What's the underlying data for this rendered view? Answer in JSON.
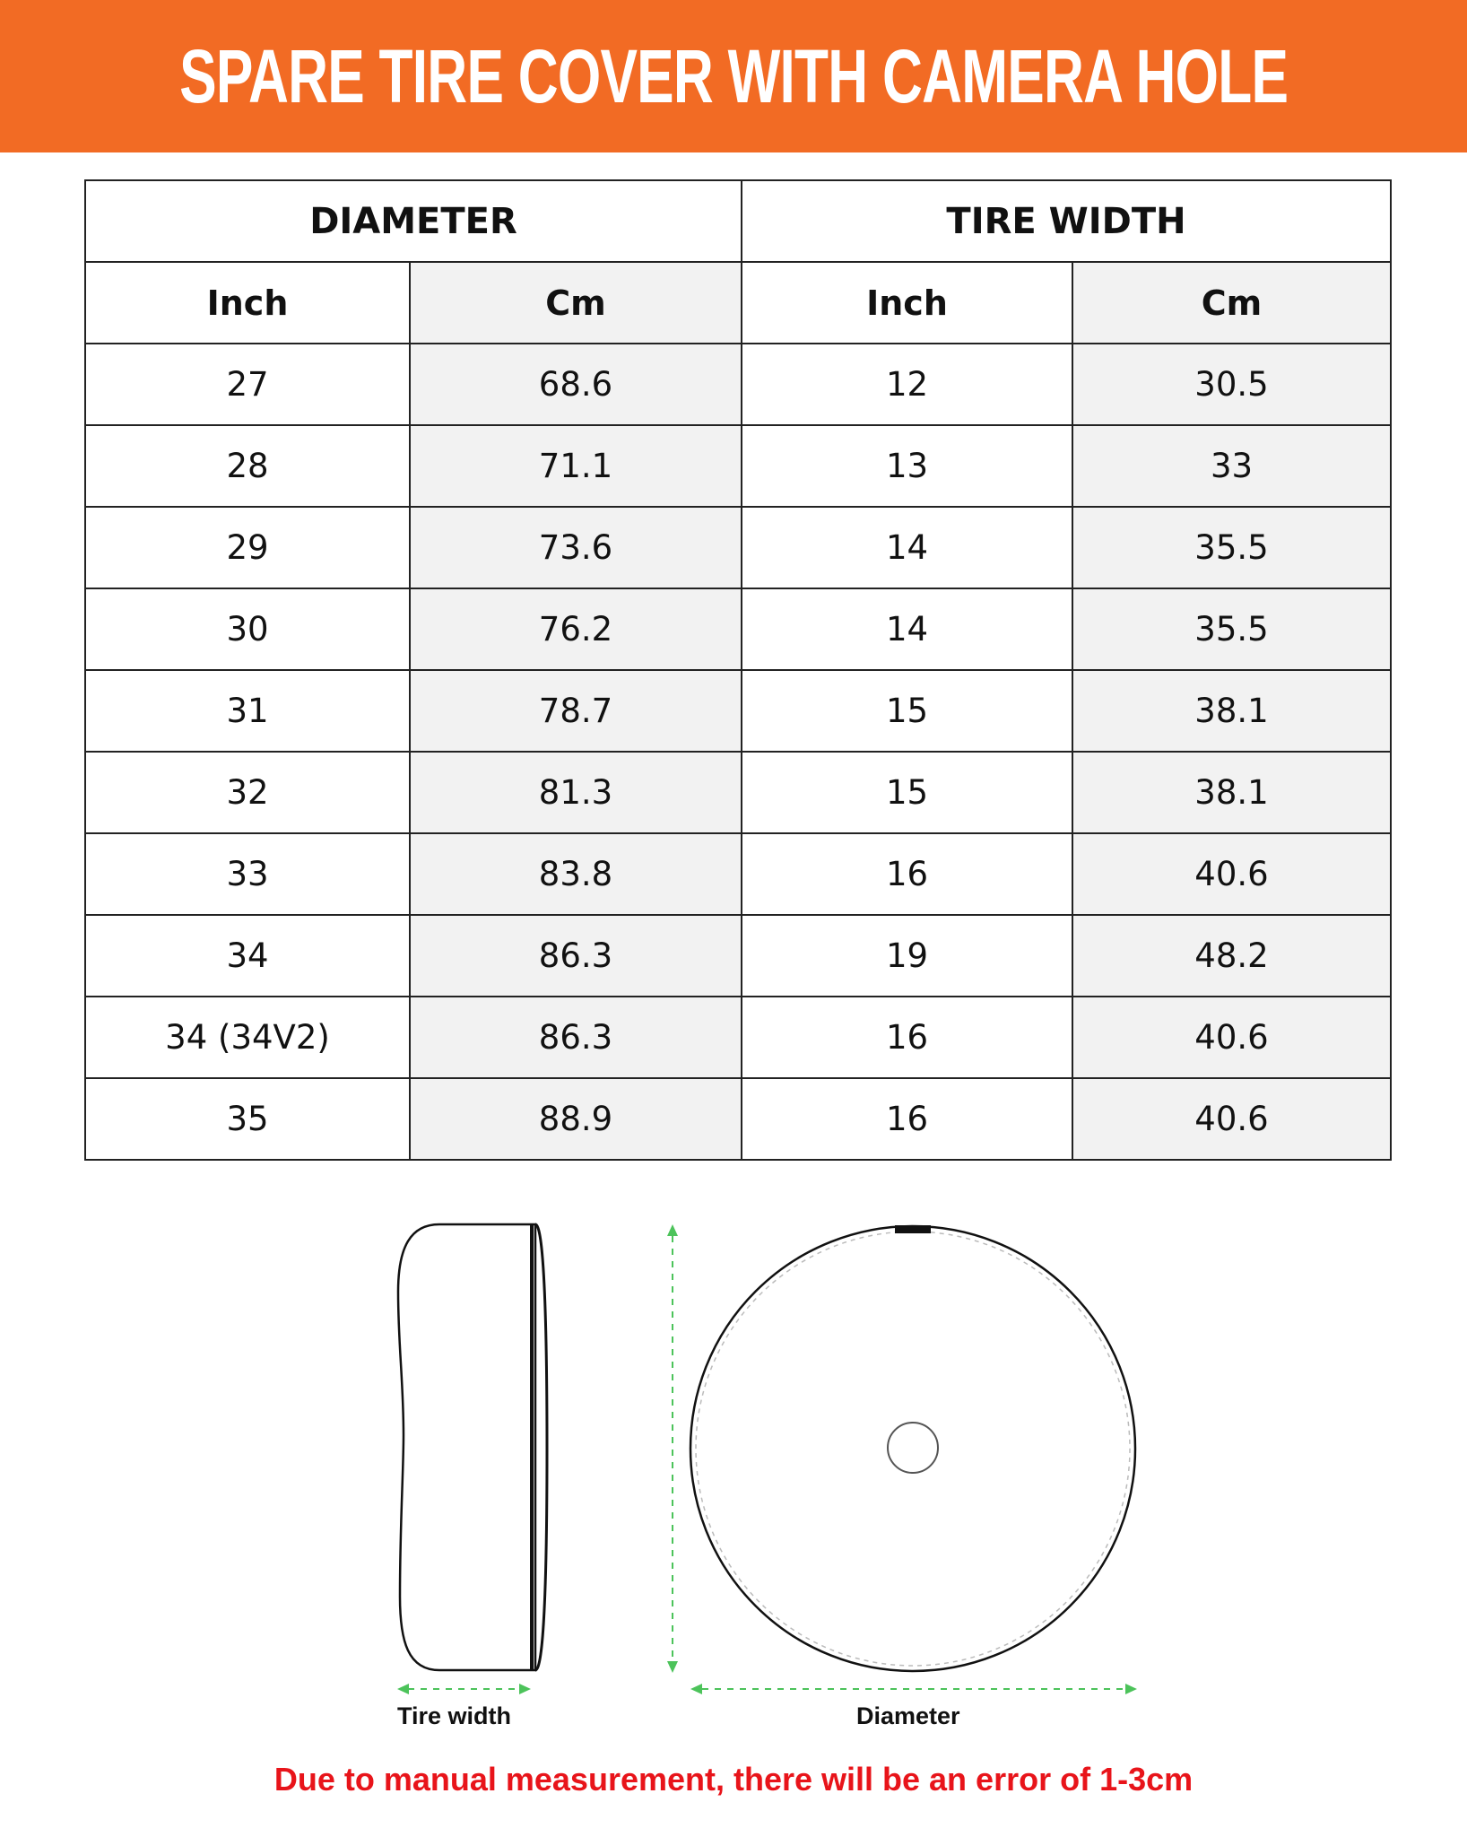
{
  "title": "SPARE TIRE COVER WITH CAMERA HOLE",
  "table": {
    "groups": [
      "DIAMETER",
      "TIRE WIDTH"
    ],
    "subheaders": [
      "Inch",
      "Cm",
      "Inch",
      "Cm"
    ],
    "rows": [
      [
        "27",
        "68.6",
        "12",
        "30.5"
      ],
      [
        "28",
        "71.1",
        "13",
        "33"
      ],
      [
        "29",
        "73.6",
        "14",
        "35.5"
      ],
      [
        "30",
        "76.2",
        "14",
        "35.5"
      ],
      [
        "31",
        "78.7",
        "15",
        "38.1"
      ],
      [
        "32",
        "81.3",
        "15",
        "38.1"
      ],
      [
        "33",
        "83.8",
        "16",
        "40.6"
      ],
      [
        "34",
        "86.3",
        "19",
        "48.2"
      ],
      [
        "34 (34V2)",
        "86.3",
        "16",
        "40.6"
      ],
      [
        "35",
        "88.9",
        "16",
        "40.6"
      ]
    ]
  },
  "diagram": {
    "tire_width_label": "Tire width",
    "diameter_label": "Diameter",
    "arrow_color": "#4cc35a"
  },
  "note": "Due to manual measurement, there will be an error of 1-3cm",
  "colors": {
    "banner": "#f26b24",
    "note": "#e8141a"
  }
}
